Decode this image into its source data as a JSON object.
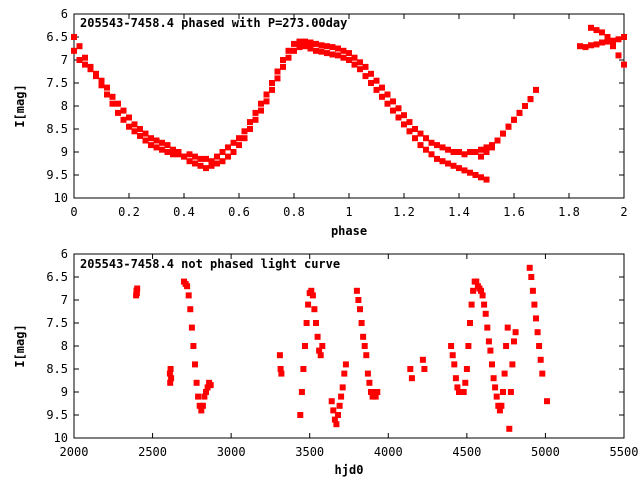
{
  "chart_data": [
    {
      "type": "scatter",
      "title": "205543-7458.4 phased with P=273.00day",
      "xlabel": "phase",
      "ylabel": "I[mag]",
      "xlim": [
        0,
        2
      ],
      "ylim": [
        10,
        6
      ],
      "y_inverted": true,
      "x_ticks": [
        "0",
        "0.2",
        "0.4",
        "0.6",
        "0.8",
        "1",
        "1.2",
        "1.4",
        "1.6",
        "1.8",
        "2"
      ],
      "y_ticks": [
        "6",
        "6.5",
        "7",
        "7.5",
        "8",
        "8.5",
        "9",
        "9.5",
        "10"
      ],
      "grid": false,
      "marker_color": "#ff0000",
      "series": [
        {
          "x": [
            0.0,
            0.02,
            0.04,
            0.06,
            0.08,
            0.1,
            0.12,
            0.14,
            0.16,
            0.18,
            0.2,
            0.22,
            0.24,
            0.26,
            0.28,
            0.3,
            0.32,
            0.34,
            0.36,
            0.38,
            0.4,
            0.42,
            0.44,
            0.46,
            0.48,
            0.5,
            0.52,
            0.54,
            0.56,
            0.58,
            0.6,
            0.62,
            0.64,
            0.66,
            0.68,
            0.7,
            0.72,
            0.74,
            0.76,
            0.78,
            0.8,
            0.82,
            0.84,
            0.86,
            0.88,
            0.9,
            0.92,
            0.94,
            0.96,
            0.98,
            1.0,
            1.02,
            1.04,
            1.06,
            1.08,
            1.1,
            1.12,
            1.14,
            1.16,
            1.18,
            1.2,
            1.22,
            1.24,
            1.26,
            1.28,
            1.3,
            1.32,
            1.34,
            1.36,
            1.38,
            1.4,
            1.42,
            1.44,
            1.46,
            1.48,
            1.5,
            1.52,
            1.54,
            1.56,
            1.58,
            1.6,
            1.62,
            1.64,
            1.66,
            1.68
          ],
          "y": [
            6.5,
            6.7,
            6.95,
            7.15,
            7.35,
            7.55,
            7.75,
            7.95,
            8.15,
            8.3,
            8.45,
            8.55,
            8.65,
            8.75,
            8.85,
            8.9,
            8.95,
            9.0,
            9.05,
            9.05,
            9.1,
            9.05,
            9.1,
            9.15,
            9.15,
            9.2,
            9.1,
            9.0,
            8.9,
            8.8,
            8.7,
            8.55,
            8.35,
            8.15,
            7.95,
            7.75,
            7.5,
            7.25,
            7.0,
            6.8,
            6.65,
            6.6,
            6.6,
            6.62,
            6.65,
            6.68,
            6.7,
            6.72,
            6.75,
            6.8,
            6.85,
            6.95,
            7.05,
            7.15,
            7.3,
            7.45,
            7.6,
            7.75,
            7.9,
            8.05,
            8.2,
            8.35,
            8.5,
            8.6,
            8.7,
            8.8,
            8.85,
            8.9,
            8.95,
            9.0,
            9.0,
            9.05,
            9.0,
            9.0,
            8.95,
            8.9,
            8.85,
            8.75,
            8.6,
            8.45,
            8.3,
            8.15,
            8.0,
            7.85,
            7.65
          ]
        },
        {
          "x": [
            0.0,
            0.02,
            0.04,
            0.06,
            0.08,
            0.1,
            0.12,
            0.14,
            0.16,
            0.18,
            0.2,
            0.22,
            0.24,
            0.26,
            0.28,
            0.3,
            0.32,
            0.34,
            0.36,
            0.38,
            0.4,
            0.42,
            0.44,
            0.46,
            0.48,
            0.5,
            0.52,
            0.54,
            0.56,
            0.58,
            0.6,
            0.62,
            0.64,
            0.66,
            0.68,
            0.7,
            0.72,
            0.74,
            0.76,
            0.78,
            0.8,
            0.82,
            0.84,
            0.86,
            0.88,
            0.9,
            0.92,
            0.94,
            0.96,
            0.98,
            1.0,
            1.02,
            1.04,
            1.06,
            1.08,
            1.1,
            1.12,
            1.14,
            1.16,
            1.18,
            1.2,
            1.22,
            1.24,
            1.26,
            1.28,
            1.3,
            1.32,
            1.34,
            1.36,
            1.38,
            1.4,
            1.42,
            1.44,
            1.46,
            1.48,
            1.5
          ],
          "y": [
            6.8,
            7.0,
            7.1,
            7.2,
            7.3,
            7.45,
            7.6,
            7.8,
            7.95,
            8.1,
            8.25,
            8.4,
            8.5,
            8.6,
            8.7,
            8.75,
            8.8,
            8.85,
            8.95,
            9.0,
            9.1,
            9.2,
            9.25,
            9.3,
            9.35,
            9.3,
            9.25,
            9.2,
            9.1,
            9.0,
            8.85,
            8.7,
            8.5,
            8.3,
            8.1,
            7.9,
            7.65,
            7.4,
            7.15,
            6.95,
            6.8,
            6.72,
            6.7,
            6.75,
            6.8,
            6.82,
            6.85,
            6.88,
            6.9,
            6.95,
            7.0,
            7.1,
            7.2,
            7.35,
            7.5,
            7.65,
            7.8,
            7.95,
            8.1,
            8.25,
            8.4,
            8.55,
            8.7,
            8.85,
            8.95,
            9.05,
            9.15,
            9.2,
            9.25,
            9.3,
            9.35,
            9.4,
            9.45,
            9.5,
            9.55,
            9.6
          ]
        },
        {
          "x": [
            1.48,
            1.5,
            1.52,
            1.54,
            1.56,
            1.58,
            1.6,
            1.62,
            1.64,
            1.66,
            1.84,
            1.86,
            1.88,
            1.9,
            1.92,
            1.94,
            1.96,
            1.98,
            2.0,
            1.88,
            1.9,
            1.92,
            1.94,
            1.96,
            1.98,
            2.0
          ],
          "y": [
            9.1,
            9.0,
            8.9,
            8.75,
            8.6,
            8.45,
            8.3,
            8.15,
            8.0,
            7.85,
            6.7,
            6.72,
            6.68,
            6.66,
            6.62,
            6.6,
            6.58,
            6.55,
            6.5,
            6.3,
            6.35,
            6.4,
            6.5,
            6.7,
            6.9,
            7.1
          ]
        }
      ]
    },
    {
      "type": "scatter",
      "title": "205543-7458.4 not phased light curve",
      "xlabel": "hjd0",
      "ylabel": "I[mag]",
      "xlim": [
        2000,
        5500
      ],
      "ylim": [
        10,
        6
      ],
      "y_inverted": true,
      "x_ticks": [
        "2000",
        "2500",
        "3000",
        "3500",
        "4000",
        "4500",
        "5000",
        "5500"
      ],
      "y_ticks": [
        "6",
        "6.5",
        "7",
        "7.5",
        "8",
        "8.5",
        "9",
        "9.5",
        "10"
      ],
      "grid": false,
      "marker_color": "#ff0000",
      "series": [
        {
          "x": [
            2395,
            2398,
            2400,
            2402,
            2610,
            2612,
            2615,
            2618,
            2700,
            2710,
            2720,
            2730,
            2740,
            2750,
            2760,
            2770,
            2780,
            2790,
            2800,
            2810,
            2820,
            2830,
            2840,
            2850,
            2860,
            2870,
            3310,
            3315,
            3320,
            3440,
            3450,
            3460,
            3470,
            3480,
            3490,
            3500,
            3510,
            3520,
            3530,
            3540,
            3550,
            3560,
            3570,
            3580,
            3640,
            3650,
            3660,
            3670,
            3680,
            3690,
            3700,
            3710,
            3720,
            3730,
            3800,
            3810,
            3820,
            3830,
            3840,
            3850,
            3860,
            3870,
            3880,
            3890,
            3900,
            3910,
            3920,
            3930,
            4140,
            4150,
            4220,
            4230,
            4400,
            4410,
            4420,
            4430,
            4440,
            4450,
            4480,
            4490,
            4500,
            4510,
            4520,
            4530,
            4540,
            4550,
            4560,
            4570,
            4580,
            4590,
            4600,
            4610,
            4620,
            4630,
            4640,
            4650,
            4660,
            4670,
            4680,
            4690,
            4700,
            4710,
            4720,
            4730,
            4740,
            4750,
            4760,
            4770,
            4780,
            4790,
            4800,
            4810,
            4900,
            4910,
            4920,
            4930,
            4940,
            4950,
            4960,
            4970,
            4980,
            5010
          ],
          "y": [
            6.9,
            6.8,
            6.85,
            6.75,
            8.6,
            8.8,
            8.5,
            8.7,
            6.6,
            6.65,
            6.7,
            6.9,
            7.2,
            7.6,
            8.0,
            8.4,
            8.8,
            9.1,
            9.3,
            9.4,
            9.3,
            9.1,
            9.0,
            8.9,
            8.8,
            8.85,
            8.2,
            8.5,
            8.6,
            9.5,
            9.0,
            8.5,
            8.0,
            7.5,
            7.1,
            6.85,
            6.8,
            6.9,
            7.2,
            7.5,
            7.8,
            8.1,
            8.2,
            8.0,
            9.2,
            9.4,
            9.6,
            9.7,
            9.5,
            9.3,
            9.1,
            8.9,
            8.6,
            8.4,
            6.8,
            7.0,
            7.2,
            7.5,
            7.8,
            8.0,
            8.2,
            8.6,
            8.8,
            9.0,
            9.1,
            9.0,
            9.1,
            9.0,
            8.5,
            8.7,
            8.3,
            8.5,
            8.0,
            8.2,
            8.4,
            8.7,
            8.9,
            9.0,
            9.0,
            8.8,
            8.5,
            8.0,
            7.5,
            7.1,
            6.8,
            6.6,
            6.6,
            6.7,
            6.75,
            6.8,
            6.9,
            7.1,
            7.3,
            7.6,
            7.9,
            8.1,
            8.4,
            8.7,
            8.9,
            9.1,
            9.3,
            9.4,
            9.3,
            9.0,
            8.6,
            8.0,
            7.6,
            9.8,
            9.0,
            8.4,
            7.9,
            7.7,
            6.3,
            6.5,
            6.8,
            7.1,
            7.4,
            7.7,
            8.0,
            8.3,
            8.6,
            9.2
          ]
        }
      ]
    }
  ]
}
